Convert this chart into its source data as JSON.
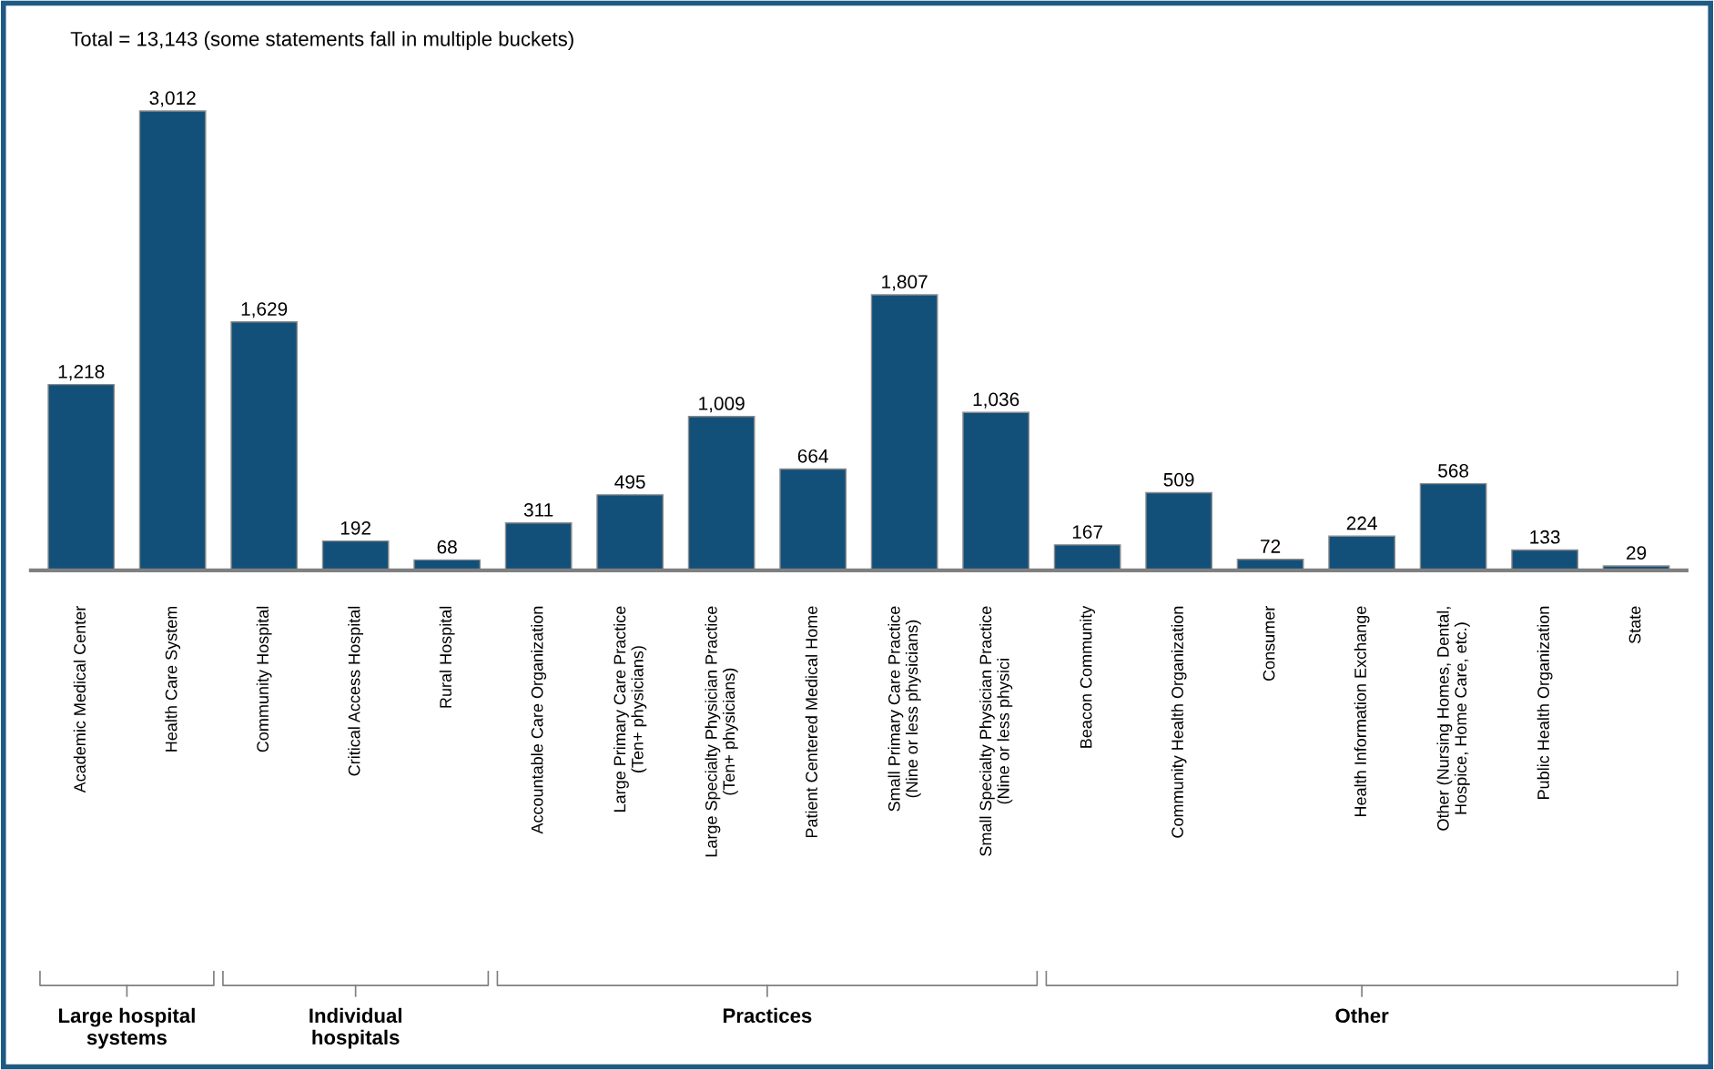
{
  "chart_data": {
    "type": "bar",
    "title": "Total = 13,143 (some statements fall in multiple buckets)",
    "categories": [
      "Academic Medical Center",
      "Health Care System",
      "Community Hospital",
      "Critical Access Hospital",
      "Rural Hospital",
      "Accountable Care Organization",
      "Large Primary Care Practice\n(Ten+ physicians)",
      "Large Specialty Physician Practice\n(Ten+ physicians)",
      "Patient Centered Medical Home",
      "Small Primary Care Practice\n(Nine or less physicians)",
      "Small Specialty Physician Practice\n(Nine or less physici",
      "Beacon Community",
      "Community Health Organization",
      "Consumer",
      "Health Information Exchange",
      "Other (Nursing Homes, Dental,\nHospice, Home Care, etc.)",
      "Public Health Organization",
      "State"
    ],
    "values": [
      1218,
      3012,
      1629,
      192,
      68,
      311,
      495,
      1009,
      664,
      1807,
      1036,
      167,
      509,
      72,
      224,
      568,
      133,
      29
    ],
    "value_labels": [
      "1,218",
      "3,012",
      "1,629",
      "192",
      "68",
      "311",
      "495",
      "1,009",
      "664",
      "1,807",
      "1,036",
      "167",
      "509",
      "72",
      "224",
      "568",
      "133",
      "29"
    ],
    "color": "#135079",
    "annotations": [
      "Large hospital\nsystems",
      "Individual\nhospitals",
      "Practices",
      "Other"
    ],
    "grid": false,
    "legend": false
  }
}
